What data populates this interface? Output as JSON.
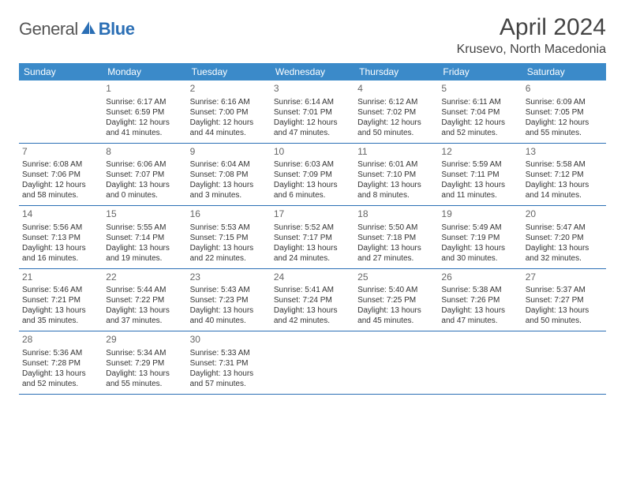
{
  "logo": {
    "text1": "General",
    "text2": "Blue"
  },
  "title": "April 2024",
  "location": "Krusevo, North Macedonia",
  "colors": {
    "header_bg": "#3b8ac9",
    "header_fg": "#ffffff",
    "border": "#2b6fb5",
    "logo_blue": "#2b6fb5",
    "text": "#333333"
  },
  "day_names": [
    "Sunday",
    "Monday",
    "Tuesday",
    "Wednesday",
    "Thursday",
    "Friday",
    "Saturday"
  ],
  "weeks": [
    [
      null,
      {
        "n": "1",
        "sr": "6:17 AM",
        "ss": "6:59 PM",
        "dl": "12 hours and 41 minutes."
      },
      {
        "n": "2",
        "sr": "6:16 AM",
        "ss": "7:00 PM",
        "dl": "12 hours and 44 minutes."
      },
      {
        "n": "3",
        "sr": "6:14 AM",
        "ss": "7:01 PM",
        "dl": "12 hours and 47 minutes."
      },
      {
        "n": "4",
        "sr": "6:12 AM",
        "ss": "7:02 PM",
        "dl": "12 hours and 50 minutes."
      },
      {
        "n": "5",
        "sr": "6:11 AM",
        "ss": "7:04 PM",
        "dl": "12 hours and 52 minutes."
      },
      {
        "n": "6",
        "sr": "6:09 AM",
        "ss": "7:05 PM",
        "dl": "12 hours and 55 minutes."
      }
    ],
    [
      {
        "n": "7",
        "sr": "6:08 AM",
        "ss": "7:06 PM",
        "dl": "12 hours and 58 minutes."
      },
      {
        "n": "8",
        "sr": "6:06 AM",
        "ss": "7:07 PM",
        "dl": "13 hours and 0 minutes."
      },
      {
        "n": "9",
        "sr": "6:04 AM",
        "ss": "7:08 PM",
        "dl": "13 hours and 3 minutes."
      },
      {
        "n": "10",
        "sr": "6:03 AM",
        "ss": "7:09 PM",
        "dl": "13 hours and 6 minutes."
      },
      {
        "n": "11",
        "sr": "6:01 AM",
        "ss": "7:10 PM",
        "dl": "13 hours and 8 minutes."
      },
      {
        "n": "12",
        "sr": "5:59 AM",
        "ss": "7:11 PM",
        "dl": "13 hours and 11 minutes."
      },
      {
        "n": "13",
        "sr": "5:58 AM",
        "ss": "7:12 PM",
        "dl": "13 hours and 14 minutes."
      }
    ],
    [
      {
        "n": "14",
        "sr": "5:56 AM",
        "ss": "7:13 PM",
        "dl": "13 hours and 16 minutes."
      },
      {
        "n": "15",
        "sr": "5:55 AM",
        "ss": "7:14 PM",
        "dl": "13 hours and 19 minutes."
      },
      {
        "n": "16",
        "sr": "5:53 AM",
        "ss": "7:15 PM",
        "dl": "13 hours and 22 minutes."
      },
      {
        "n": "17",
        "sr": "5:52 AM",
        "ss": "7:17 PM",
        "dl": "13 hours and 24 minutes."
      },
      {
        "n": "18",
        "sr": "5:50 AM",
        "ss": "7:18 PM",
        "dl": "13 hours and 27 minutes."
      },
      {
        "n": "19",
        "sr": "5:49 AM",
        "ss": "7:19 PM",
        "dl": "13 hours and 30 minutes."
      },
      {
        "n": "20",
        "sr": "5:47 AM",
        "ss": "7:20 PM",
        "dl": "13 hours and 32 minutes."
      }
    ],
    [
      {
        "n": "21",
        "sr": "5:46 AM",
        "ss": "7:21 PM",
        "dl": "13 hours and 35 minutes."
      },
      {
        "n": "22",
        "sr": "5:44 AM",
        "ss": "7:22 PM",
        "dl": "13 hours and 37 minutes."
      },
      {
        "n": "23",
        "sr": "5:43 AM",
        "ss": "7:23 PM",
        "dl": "13 hours and 40 minutes."
      },
      {
        "n": "24",
        "sr": "5:41 AM",
        "ss": "7:24 PM",
        "dl": "13 hours and 42 minutes."
      },
      {
        "n": "25",
        "sr": "5:40 AM",
        "ss": "7:25 PM",
        "dl": "13 hours and 45 minutes."
      },
      {
        "n": "26",
        "sr": "5:38 AM",
        "ss": "7:26 PM",
        "dl": "13 hours and 47 minutes."
      },
      {
        "n": "27",
        "sr": "5:37 AM",
        "ss": "7:27 PM",
        "dl": "13 hours and 50 minutes."
      }
    ],
    [
      {
        "n": "28",
        "sr": "5:36 AM",
        "ss": "7:28 PM",
        "dl": "13 hours and 52 minutes."
      },
      {
        "n": "29",
        "sr": "5:34 AM",
        "ss": "7:29 PM",
        "dl": "13 hours and 55 minutes."
      },
      {
        "n": "30",
        "sr": "5:33 AM",
        "ss": "7:31 PM",
        "dl": "13 hours and 57 minutes."
      },
      null,
      null,
      null,
      null
    ]
  ],
  "labels": {
    "sunrise": "Sunrise:",
    "sunset": "Sunset:",
    "daylight": "Daylight:"
  }
}
